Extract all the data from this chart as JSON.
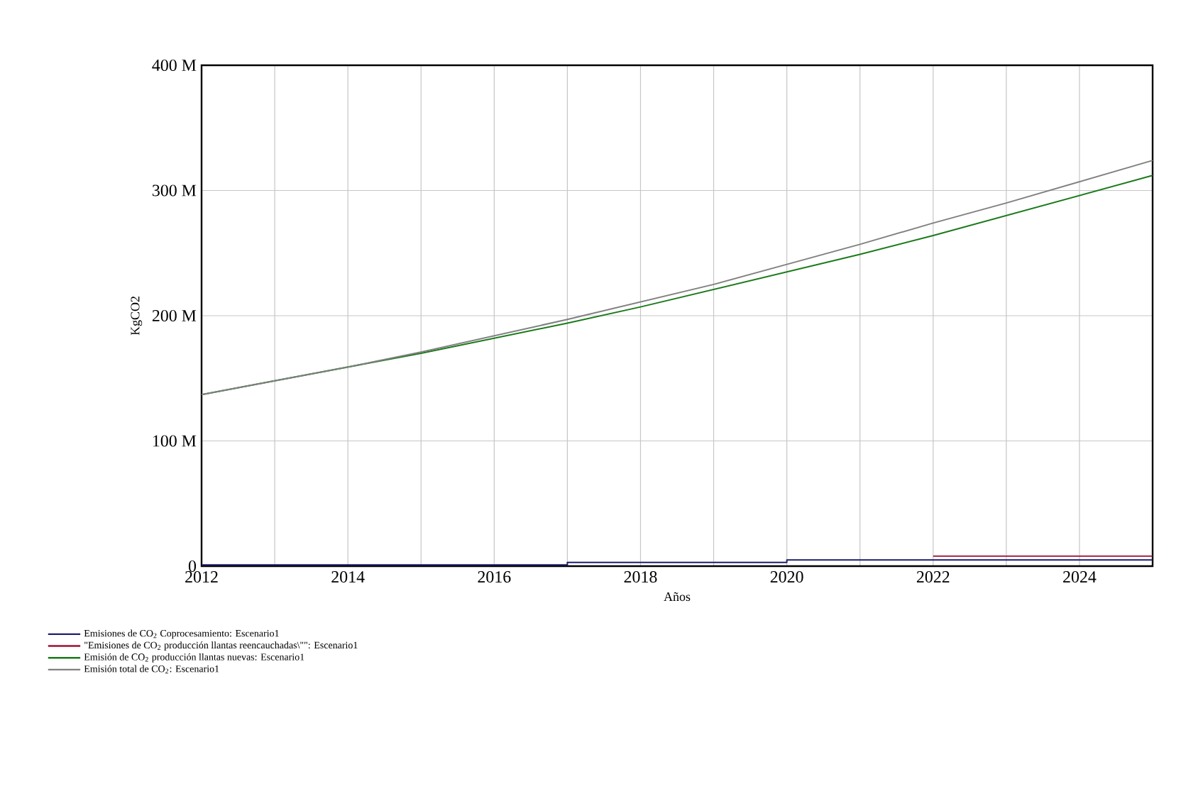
{
  "chart_data": {
    "type": "line",
    "xlabel": "Años",
    "ylabel": "KgCO2",
    "x": [
      2012,
      2013,
      2014,
      2015,
      2016,
      2017,
      2018,
      2019,
      2020,
      2021,
      2022,
      2023,
      2024,
      2025
    ],
    "series": [
      {
        "name": "Emisiones de CO$_{2}$ Coprocesamiento: Escenario1",
        "type": "step",
        "color": "#1f1f6e",
        "values": [
          1,
          1,
          1,
          1,
          1,
          3,
          3,
          3,
          5,
          5,
          5,
          5,
          5,
          5
        ]
      },
      {
        "name": "\"Emisiones de CO$_{2}$ producción llantas reencauchadas\\\"\": Escenario1",
        "type": "step",
        "color": "#a01030",
        "values": [
          null,
          null,
          null,
          null,
          null,
          null,
          null,
          null,
          null,
          null,
          8,
          8,
          8,
          8
        ]
      },
      {
        "name": "Emisión de CO$_{2}$ producción llantas nuevas: Escenario1",
        "color": "#1a7a1a",
        "values": [
          137,
          148,
          159,
          170,
          182,
          194,
          207,
          221,
          235,
          249,
          264,
          280,
          296,
          312
        ]
      },
      {
        "name": "Emisión total de CO$_{2}$: Escenario1",
        "color": "#808080",
        "values": [
          137,
          148,
          159,
          171,
          184,
          197,
          211,
          225,
          241,
          257,
          274,
          290,
          307,
          324
        ]
      }
    ],
    "xlim": [
      2012,
      2025
    ],
    "xticks": [
      2012,
      {
        "value": 2013,
        "label": null
      },
      2014,
      {
        "value": 2015,
        "label": null
      },
      2016,
      {
        "value": 2017,
        "label": null
      },
      2018,
      {
        "value": 2019,
        "label": null
      },
      2020,
      {
        "value": 2021,
        "label": null
      },
      2022,
      {
        "value": 2023,
        "label": null
      },
      2024,
      {
        "value": 2025,
        "label": null
      }
    ],
    "ylim": [
      0,
      400
    ],
    "yticks": [
      {
        "value": 0,
        "label": "0"
      },
      {
        "value": 100,
        "label": "100 M"
      },
      {
        "value": 200,
        "label": "200 M"
      },
      {
        "value": 300,
        "label": "300 M"
      },
      {
        "value": 400,
        "label": "400 M"
      }
    ],
    "grid": true,
    "legend": "bottom",
    "marker": "none",
    "line_style": "solid"
  }
}
